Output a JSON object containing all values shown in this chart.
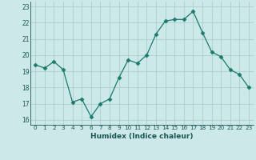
{
  "x": [
    0,
    1,
    2,
    3,
    4,
    5,
    6,
    7,
    8,
    9,
    10,
    11,
    12,
    13,
    14,
    15,
    16,
    17,
    18,
    19,
    20,
    21,
    22,
    23
  ],
  "y": [
    19.4,
    19.2,
    19.6,
    19.1,
    17.1,
    17.3,
    16.2,
    17.0,
    17.3,
    18.6,
    19.7,
    19.5,
    20.0,
    21.3,
    22.1,
    22.2,
    22.2,
    22.7,
    21.4,
    20.2,
    19.9,
    19.1,
    18.8,
    18.0
  ],
  "xlabel": "Humidex (Indice chaleur)",
  "xlim": [
    -0.5,
    23.5
  ],
  "ylim": [
    15.7,
    23.3
  ],
  "yticks": [
    16,
    17,
    18,
    19,
    20,
    21,
    22,
    23
  ],
  "xticks": [
    0,
    1,
    2,
    3,
    4,
    5,
    6,
    7,
    8,
    9,
    10,
    11,
    12,
    13,
    14,
    15,
    16,
    17,
    18,
    19,
    20,
    21,
    22,
    23
  ],
  "line_color": "#1a7a6e",
  "marker": "D",
  "marker_size": 2.5,
  "bg_color": "#cce8e8",
  "grid_color": "#aacece",
  "label_color": "#1a5555",
  "tick_color": "#1a5555"
}
